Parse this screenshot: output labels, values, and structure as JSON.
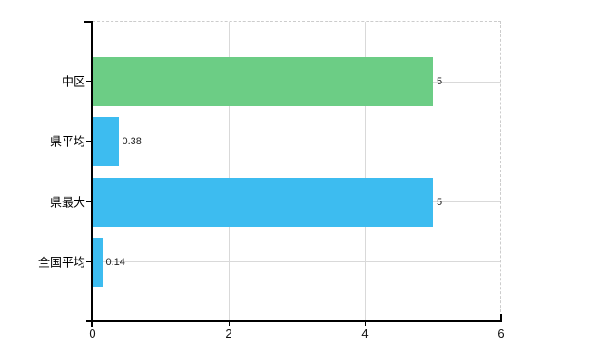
{
  "chart_data": {
    "type": "bar",
    "orientation": "horizontal",
    "title": "",
    "xlabel": "",
    "ylabel": "",
    "categories": [
      "中区",
      "県平均",
      "県最大",
      "全国平均"
    ],
    "values": [
      5,
      0.38,
      5,
      0.14
    ],
    "value_labels": [
      "5",
      "0.38",
      "5",
      "0.14"
    ],
    "bar_colors": [
      "#6ccd85",
      "#3dbcf0",
      "#3dbcf0",
      "#3dbcf0"
    ],
    "xlim": [
      0,
      6
    ],
    "x_ticks": [
      0,
      2,
      4,
      6
    ],
    "x_tick_labels": [
      "0",
      "2",
      "4",
      "6"
    ],
    "grid": true,
    "legend": false
  },
  "colors": {
    "bar_green": "#6ccd85",
    "bar_blue": "#3dbcf0",
    "gridline": "#d9d9d9",
    "dashed_border": "#cccccc",
    "axis": "#000000",
    "text": "#000000",
    "value_text": "#222222",
    "background": "#ffffff"
  }
}
